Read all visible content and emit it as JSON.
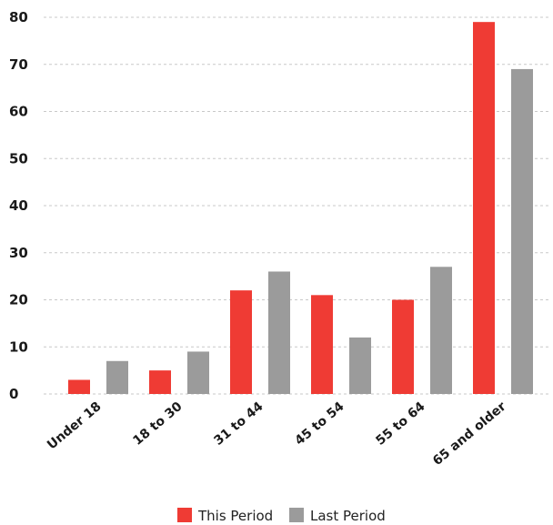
{
  "chart_data": {
    "type": "bar",
    "title": "",
    "xlabel": "",
    "ylabel": "",
    "ylim": [
      0,
      80
    ],
    "yticks": [
      0,
      10,
      20,
      30,
      40,
      50,
      60,
      70,
      80
    ],
    "grid": true,
    "legend_position": "bottom",
    "categories": [
      "Under 18",
      "18 to 30",
      "31 to 44",
      "45 to 54",
      "55 to 64",
      "65 and older"
    ],
    "series": [
      {
        "name": "This Period",
        "color": "#ef3b34",
        "values": [
          3,
          5,
          22,
          21,
          20,
          79
        ]
      },
      {
        "name": "Last Period",
        "color": "#9b9b9b",
        "values": [
          7,
          9,
          26,
          12,
          27,
          69
        ]
      }
    ]
  }
}
